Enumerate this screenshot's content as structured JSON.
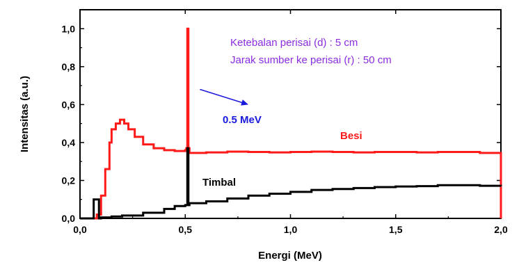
{
  "chart_data": {
    "type": "line",
    "xlabel": "Energi (MeV)",
    "ylabel": "Intensitas (a.u.)",
    "xlim": [
      0,
      2.0
    ],
    "ylim": [
      0,
      1.1
    ],
    "xticks": [
      {
        "value": 0.0,
        "label": "0,0"
      },
      {
        "value": 0.5,
        "label": "0,5"
      },
      {
        "value": 1.0,
        "label": "1,0"
      },
      {
        "value": 1.5,
        "label": "1,5"
      },
      {
        "value": 2.0,
        "label": "2,0"
      }
    ],
    "yticks": [
      {
        "value": 0.0,
        "label": "0,0"
      },
      {
        "value": 0.2,
        "label": "0,2"
      },
      {
        "value": 0.4,
        "label": "0,4"
      },
      {
        "value": 0.6,
        "label": "0,6"
      },
      {
        "value": 0.8,
        "label": "0,8"
      },
      {
        "value": 1.0,
        "label": "1,0"
      }
    ],
    "grid": false,
    "annotations": [
      {
        "text": "Ketebalan perisai (d) : 5 cm",
        "color": "#8a2be2"
      },
      {
        "text": "Jarak sumber ke perisai (r) : 50 cm",
        "color": "#8a2be2"
      }
    ],
    "arrow": {
      "text": "0.5 MeV",
      "color": "#1a1adc",
      "from": [
        0.57,
        0.68
      ],
      "to": [
        0.8,
        0.6
      ]
    },
    "series": [
      {
        "name": "Besi",
        "color": "#ff1a1a",
        "x": [
          0.0,
          0.05,
          0.08,
          0.1,
          0.12,
          0.14,
          0.15,
          0.17,
          0.19,
          0.21,
          0.23,
          0.26,
          0.3,
          0.35,
          0.4,
          0.45,
          0.5,
          0.505,
          0.51,
          0.515,
          0.52,
          0.6,
          0.7,
          0.8,
          0.9,
          1.0,
          1.1,
          1.2,
          1.3,
          1.4,
          1.5,
          1.6,
          1.7,
          1.8,
          1.9,
          1.99,
          2.0,
          2.0
        ],
        "y": [
          0.0,
          0.0,
          0.02,
          0.12,
          0.26,
          0.4,
          0.47,
          0.5,
          0.52,
          0.5,
          0.47,
          0.43,
          0.39,
          0.37,
          0.36,
          0.355,
          0.36,
          0.37,
          1.0,
          0.37,
          0.345,
          0.348,
          0.352,
          0.35,
          0.348,
          0.35,
          0.352,
          0.35,
          0.348,
          0.35,
          0.35,
          0.348,
          0.35,
          0.35,
          0.345,
          0.345,
          0.3,
          0.0
        ]
      },
      {
        "name": "Timbal",
        "color": "#000000",
        "x": [
          0.0,
          0.06,
          0.065,
          0.07,
          0.085,
          0.09,
          0.1,
          0.15,
          0.2,
          0.3,
          0.4,
          0.45,
          0.5,
          0.505,
          0.51,
          0.515,
          0.52,
          0.6,
          0.7,
          0.8,
          0.9,
          1.0,
          1.1,
          1.2,
          1.3,
          1.4,
          1.5,
          1.6,
          1.7,
          1.8,
          1.9,
          2.0
        ],
        "y": [
          0.0,
          0.0,
          0.1,
          0.1,
          0.1,
          0.0,
          0.005,
          0.01,
          0.015,
          0.03,
          0.05,
          0.065,
          0.07,
          0.07,
          0.37,
          0.07,
          0.08,
          0.09,
          0.105,
          0.12,
          0.13,
          0.14,
          0.15,
          0.155,
          0.16,
          0.165,
          0.168,
          0.17,
          0.175,
          0.175,
          0.172,
          0.17
        ]
      }
    ]
  }
}
